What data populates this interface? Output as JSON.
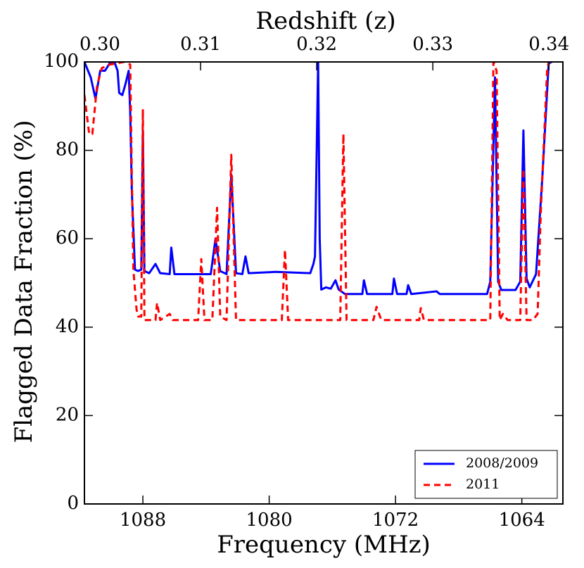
{
  "chart_data": {
    "type": "line",
    "xlabel": "Frequency (MHz)",
    "ylabel": "Flagged Data Fraction (%)",
    "x2label": "Redshift (z)",
    "xlim": [
      1091.7,
      1061.4
    ],
    "xticks": [
      1088,
      1080,
      1072,
      1064
    ],
    "ylim": [
      0,
      100
    ],
    "yticks": [
      0,
      20,
      40,
      60,
      80,
      100
    ],
    "x2lim": [
      0.3,
      0.3412
    ],
    "x2ticks": [
      {
        "value": 0.3,
        "label": "0.30"
      },
      0.31,
      0.32,
      0.33,
      0.34
    ],
    "legend": "lower right",
    "series": [
      {
        "name": "2008/2009",
        "color": "#0000ff",
        "style": "solid",
        "x": [
          1091.7,
          1091.3,
          1091.0,
          1090.7,
          1090.4,
          1090.1,
          1089.8,
          1089.6,
          1089.5,
          1089.3,
          1089.1,
          1088.9,
          1088.8,
          1088.7,
          1088.5,
          1088.3,
          1088.1,
          1088.0,
          1087.9,
          1087.6,
          1087.2,
          1086.9,
          1086.3,
          1086.2,
          1086.0,
          1083.7,
          1083.4,
          1083.1,
          1082.7,
          1082.4,
          1082.1,
          1081.7,
          1081.5,
          1081.3,
          1079.6,
          1077.4,
          1077.2,
          1077.1,
          1076.9,
          1076.8,
          1076.7,
          1076.4,
          1076.1,
          1075.8,
          1075.6,
          1075.2,
          1074.1,
          1074.0,
          1073.8,
          1072.2,
          1072.1,
          1071.9,
          1071.3,
          1071.2,
          1071.0,
          1069.4,
          1069.2,
          1066.2,
          1066.0,
          1065.7,
          1065.5,
          1065.3,
          1064.4,
          1064.1,
          1063.9,
          1063.7,
          1063.5,
          1063.1,
          1062.7,
          1062.3,
          1062.1
        ],
        "values": [
          100,
          96.5,
          91.7,
          98,
          98,
          99.7,
          100,
          98,
          93,
          92.5,
          95,
          98,
          88.5,
          71,
          53,
          52.7,
          53,
          84.5,
          52.7,
          52.2,
          54.3,
          52.2,
          52,
          58,
          52,
          52,
          60,
          52.7,
          52,
          74.5,
          52.2,
          52,
          56,
          52.2,
          52.5,
          52.2,
          54.3,
          56,
          100,
          60,
          48.5,
          49,
          48.7,
          50.6,
          48.5,
          47.5,
          47.5,
          50.6,
          47.5,
          47.5,
          51,
          47.5,
          47.5,
          49.5,
          47.5,
          48.1,
          47.5,
          47.5,
          50.3,
          96.5,
          50.3,
          48.4,
          48.4,
          50.3,
          84.5,
          51,
          49,
          52,
          74,
          99.7,
          100
        ]
      },
      {
        "name": "2011",
        "color": "#ff0000",
        "style": "dashed",
        "x": [
          1091.7,
          1091.4,
          1091.2,
          1090.9,
          1090.6,
          1090.1,
          1089.2,
          1088.8,
          1088.7,
          1088.6,
          1088.4,
          1088.3,
          1088.1,
          1088.0,
          1087.9,
          1087.2,
          1087.1,
          1086.9,
          1086.3,
          1086.1,
          1084.5,
          1084.3,
          1084.1,
          1083.6,
          1083.3,
          1083.1,
          1082.7,
          1082.4,
          1082.1,
          1079.2,
          1079.0,
          1078.8,
          1075.5,
          1075.3,
          1075.1,
          1073.4,
          1073.2,
          1072.9,
          1070.5,
          1070.4,
          1070.2,
          1066.0,
          1065.8,
          1065.6,
          1065.4,
          1065.2,
          1064.9,
          1064.1,
          1063.9,
          1063.7,
          1063.3,
          1063.0,
          1062.8,
          1062.4,
          1062.3
        ],
        "values": [
          92.5,
          83.7,
          83.7,
          94.6,
          98.6,
          99.4,
          100,
          99.4,
          74.5,
          53,
          44,
          42.4,
          42.4,
          89.3,
          41.6,
          41.6,
          45.5,
          41.6,
          43,
          41.6,
          41.6,
          55.4,
          41.6,
          41.6,
          67,
          42.4,
          41.6,
          79,
          41.6,
          41.6,
          57.5,
          41.6,
          41.6,
          83.7,
          41.6,
          41.6,
          44.6,
          41.6,
          41.6,
          44.3,
          41.6,
          41.6,
          100,
          98,
          41.6,
          43,
          41.6,
          41.6,
          75.8,
          41.6,
          41.6,
          43,
          66,
          98,
          100
        ]
      }
    ]
  }
}
